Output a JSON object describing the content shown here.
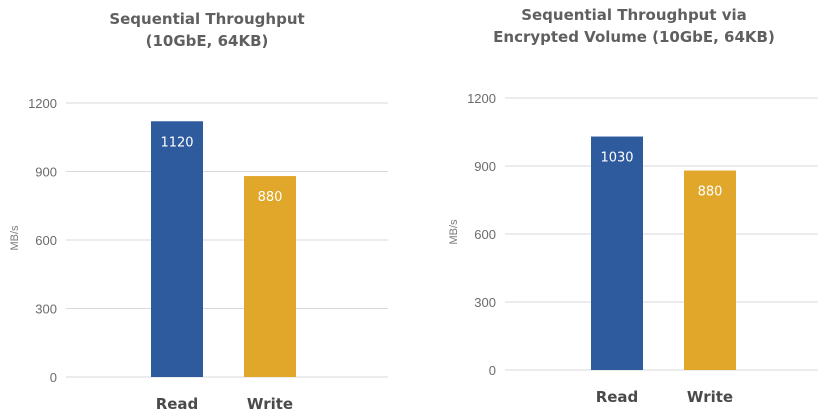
{
  "chart_data": [
    {
      "type": "bar",
      "title_lines": [
        "Sequential Throughput",
        "(10GbE, 64KB)"
      ],
      "ylabel": "MB/s",
      "categories": [
        "Read",
        "Write"
      ],
      "values": [
        1120,
        880
      ],
      "data_labels": [
        "1120",
        "880"
      ],
      "colors": [
        "#2e5a9e",
        "#e0a72a"
      ],
      "ylim": [
        0,
        1200
      ],
      "yticks": [
        0,
        300,
        600,
        900,
        1200
      ],
      "grid": true,
      "legend": "none"
    },
    {
      "type": "bar",
      "title_lines": [
        "Sequential Throughput via",
        "Encrypted Volume (10GbE, 64KB)"
      ],
      "ylabel": "MB/s",
      "categories": [
        "Read",
        "Write"
      ],
      "values": [
        1030,
        880
      ],
      "data_labels": [
        "1030",
        "880"
      ],
      "colors": [
        "#2e5a9e",
        "#e0a72a"
      ],
      "ylim": [
        0,
        1200
      ],
      "yticks": [
        0,
        300,
        600,
        900,
        1200
      ],
      "grid": true,
      "legend": "none"
    }
  ]
}
